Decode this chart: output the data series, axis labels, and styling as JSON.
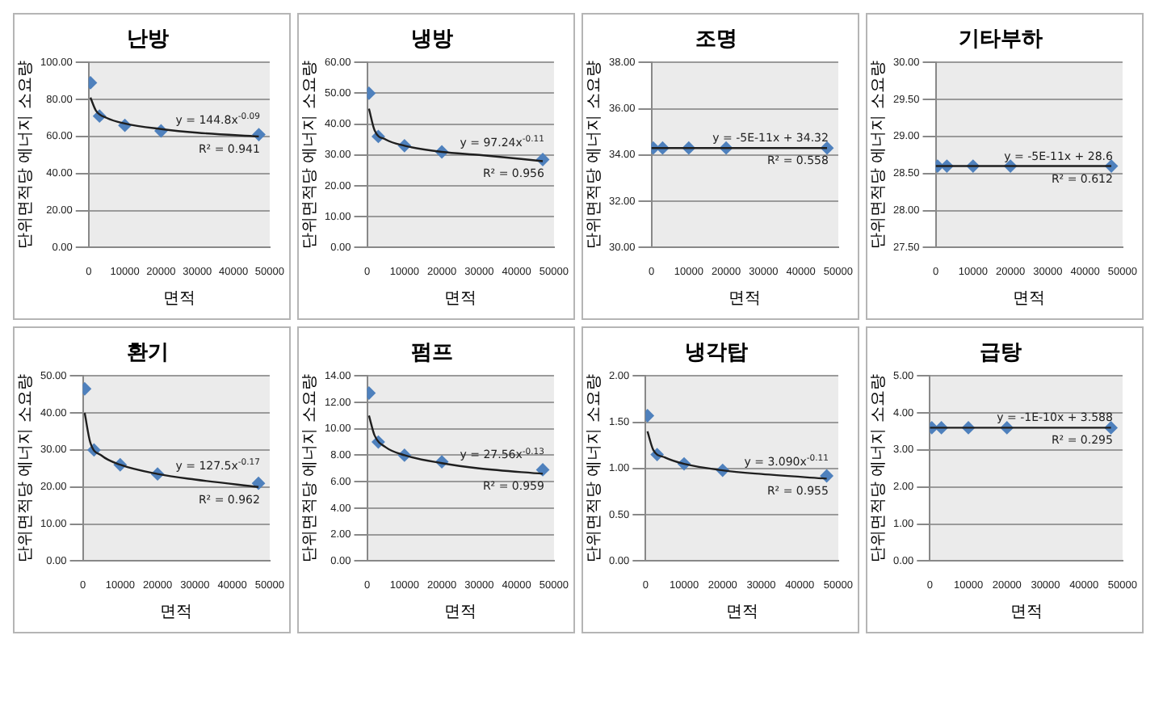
{
  "chart_data": [
    {
      "type": "scatter",
      "title": "난방",
      "xlabel": "면적",
      "ylabel": "단위면적당 에너지 소요량",
      "xlim": [
        0,
        50000
      ],
      "xticks": [
        0,
        10000,
        20000,
        30000,
        40000,
        50000
      ],
      "ylim": [
        0,
        100
      ],
      "yticks": [
        {
          "value": 0,
          "label": "0.00"
        },
        {
          "value": 20,
          "label": "20.00"
        },
        {
          "value": 40,
          "label": "40.00"
        },
        {
          "value": 60,
          "label": "60.00"
        },
        {
          "value": 80,
          "label": "80.00"
        },
        {
          "value": 100,
          "label": "100.00"
        }
      ],
      "grid": "y",
      "annotations": [
        "y = 144.8x$^{-0.09}$",
        "R² = 0.941"
      ],
      "series": [
        {
          "type": "scatter",
          "marker": "diamond",
          "color": "#4f81bd",
          "x": [
            500,
            3000,
            10000,
            20000,
            47000
          ],
          "values": [
            89,
            71,
            66,
            63,
            61
          ]
        },
        {
          "type": "line",
          "marker": "none",
          "color": "#1f1f1f",
          "x": [
            500,
            2000,
            5000,
            10000,
            20000,
            30000,
            47000
          ],
          "values": [
            81,
            74,
            70,
            67,
            64,
            62,
            60
          ]
        }
      ]
    },
    {
      "type": "scatter",
      "title": "냉방",
      "xlabel": "면적",
      "ylabel": "단위면적당 에너지 소요량",
      "xlim": [
        0,
        50000
      ],
      "xticks": [
        0,
        10000,
        20000,
        30000,
        40000,
        50000
      ],
      "ylim": [
        0,
        60
      ],
      "yticks": [
        {
          "value": 0,
          "label": "0.00"
        },
        {
          "value": 10,
          "label": "10.00"
        },
        {
          "value": 20,
          "label": "20.00"
        },
        {
          "value": 30,
          "label": "30.00"
        },
        {
          "value": 40,
          "label": "40.00"
        },
        {
          "value": 50,
          "label": "50.00"
        },
        {
          "value": 60,
          "label": "60.00"
        }
      ],
      "grid": "y",
      "annotations": [
        "y = 97.24x$^{-0.11}$",
        "R² = 0.956"
      ],
      "series": [
        {
          "type": "scatter",
          "marker": "diamond",
          "color": "#4f81bd",
          "x": [
            500,
            3000,
            10000,
            20000,
            47000
          ],
          "values": [
            50,
            36,
            33,
            31,
            28.5
          ]
        },
        {
          "type": "line",
          "marker": "none",
          "color": "#1f1f1f",
          "x": [
            500,
            2000,
            5000,
            10000,
            20000,
            30000,
            47000
          ],
          "values": [
            45,
            38,
            35,
            33,
            31,
            30,
            28
          ]
        }
      ]
    },
    {
      "type": "scatter",
      "title": "조명",
      "xlabel": "면적",
      "ylabel": "단위면적당 에너지 소요량",
      "xlim": [
        0,
        50000
      ],
      "xticks": [
        0,
        10000,
        20000,
        30000,
        40000,
        50000
      ],
      "ylim": [
        30,
        38
      ],
      "yticks": [
        {
          "value": 30,
          "label": "30.00"
        },
        {
          "value": 32,
          "label": "32.00"
        },
        {
          "value": 34,
          "label": "34.00"
        },
        {
          "value": 36,
          "label": "36.00"
        },
        {
          "value": 38,
          "label": "38.00"
        }
      ],
      "grid": "y",
      "annotations": [
        "y = -5E-11x + 34.32",
        "R² = 0.558"
      ],
      "series": [
        {
          "type": "scatter",
          "marker": "diamond",
          "color": "#4f81bd",
          "x": [
            500,
            3000,
            10000,
            20000,
            47000
          ],
          "values": [
            34.3,
            34.3,
            34.3,
            34.3,
            34.3
          ]
        },
        {
          "type": "line",
          "marker": "none",
          "color": "#1f1f1f",
          "x": [
            0,
            47000
          ],
          "values": [
            34.3,
            34.3
          ]
        }
      ]
    },
    {
      "type": "scatter",
      "title": "기타부하",
      "xlabel": "면적",
      "ylabel": "단위면적당 에너지 소요량",
      "xlim": [
        0,
        50000
      ],
      "xticks": [
        0,
        10000,
        20000,
        30000,
        40000,
        50000
      ],
      "ylim": [
        27.5,
        30
      ],
      "yticks": [
        {
          "value": 27.5,
          "label": "27.50"
        },
        {
          "value": 28,
          "label": "28.00"
        },
        {
          "value": 28.5,
          "label": "28.50"
        },
        {
          "value": 29,
          "label": "29.00"
        },
        {
          "value": 29.5,
          "label": "29.50"
        },
        {
          "value": 30,
          "label": "30.00"
        }
      ],
      "grid": "y",
      "annotations": [
        "y = -5E-11x + 28.6",
        "R² = 0.612"
      ],
      "series": [
        {
          "type": "scatter",
          "marker": "diamond",
          "color": "#4f81bd",
          "x": [
            500,
            3000,
            10000,
            20000,
            47000
          ],
          "values": [
            28.6,
            28.6,
            28.6,
            28.6,
            28.6
          ]
        },
        {
          "type": "line",
          "marker": "none",
          "color": "#1f1f1f",
          "x": [
            0,
            47000
          ],
          "values": [
            28.6,
            28.6
          ]
        }
      ]
    },
    {
      "type": "scatter",
      "title": "환기",
      "xlabel": "면적",
      "ylabel": "단위면적당 에너지 소요량",
      "xlim": [
        0,
        50000
      ],
      "xticks": [
        0,
        10000,
        20000,
        30000,
        40000,
        50000
      ],
      "ylim": [
        0,
        50
      ],
      "yticks": [
        {
          "value": 0,
          "label": "0.00"
        },
        {
          "value": 10,
          "label": "10.00"
        },
        {
          "value": 20,
          "label": "20.00"
        },
        {
          "value": 30,
          "label": "30.00"
        },
        {
          "value": 40,
          "label": "40.00"
        },
        {
          "value": 50,
          "label": "50.00"
        }
      ],
      "grid": "y",
      "annotations": [
        "y = 127.5x$^{-0.17}$",
        "R² = 0.962"
      ],
      "series": [
        {
          "type": "scatter",
          "marker": "diamond",
          "color": "#4f81bd",
          "x": [
            500,
            3000,
            10000,
            20000,
            47000
          ],
          "values": [
            46.5,
            30,
            26,
            23.5,
            21
          ]
        },
        {
          "type": "line",
          "marker": "none",
          "color": "#1f1f1f",
          "x": [
            500,
            2000,
            5000,
            10000,
            20000,
            30000,
            47000
          ],
          "values": [
            40,
            32,
            28.5,
            26,
            23.5,
            22,
            20
          ]
        }
      ]
    },
    {
      "type": "scatter",
      "title": "펌프",
      "xlabel": "면적",
      "ylabel": "단위면적당 에너지 소요량",
      "xlim": [
        0,
        50000
      ],
      "xticks": [
        0,
        10000,
        20000,
        30000,
        40000,
        50000
      ],
      "ylim": [
        0,
        14
      ],
      "yticks": [
        {
          "value": 0,
          "label": "0.00"
        },
        {
          "value": 2,
          "label": "2.00"
        },
        {
          "value": 4,
          "label": "4.00"
        },
        {
          "value": 6,
          "label": "6.00"
        },
        {
          "value": 8,
          "label": "8.00"
        },
        {
          "value": 10,
          "label": "10.00"
        },
        {
          "value": 12,
          "label": "12.00"
        },
        {
          "value": 14,
          "label": "14.00"
        }
      ],
      "grid": "y",
      "annotations": [
        "y = 27.56x$^{-0.13}$",
        "R² = 0.959"
      ],
      "series": [
        {
          "type": "scatter",
          "marker": "diamond",
          "color": "#4f81bd",
          "x": [
            500,
            3000,
            10000,
            20000,
            47000
          ],
          "values": [
            12.7,
            9,
            8,
            7.5,
            6.9
          ]
        },
        {
          "type": "line",
          "marker": "none",
          "color": "#1f1f1f",
          "x": [
            500,
            2000,
            5000,
            10000,
            20000,
            30000,
            47000
          ],
          "values": [
            11,
            9.5,
            8.6,
            8,
            7.4,
            7,
            6.6
          ]
        }
      ]
    },
    {
      "type": "scatter",
      "title": "냉각탑",
      "xlabel": "면적",
      "ylabel": "단위면적당 에너지 소요량",
      "xlim": [
        0,
        50000
      ],
      "xticks": [
        0,
        10000,
        20000,
        30000,
        40000,
        50000
      ],
      "ylim": [
        0,
        2
      ],
      "yticks": [
        {
          "value": 0,
          "label": "0.00"
        },
        {
          "value": 0.5,
          "label": "0.50"
        },
        {
          "value": 1,
          "label": "1.00"
        },
        {
          "value": 1.5,
          "label": "1.50"
        },
        {
          "value": 2,
          "label": "2.00"
        }
      ],
      "grid": "y",
      "annotations": [
        "y = 3.090x$^{-0.11}$",
        "R² = 0.955"
      ],
      "series": [
        {
          "type": "scatter",
          "marker": "diamond",
          "color": "#4f81bd",
          "x": [
            500,
            3000,
            10000,
            20000,
            47000
          ],
          "values": [
            1.57,
            1.15,
            1.05,
            0.98,
            0.92
          ]
        },
        {
          "type": "line",
          "marker": "none",
          "color": "#1f1f1f",
          "x": [
            500,
            2000,
            5000,
            10000,
            20000,
            30000,
            47000
          ],
          "values": [
            1.4,
            1.2,
            1.12,
            1.05,
            0.98,
            0.94,
            0.89
          ]
        }
      ]
    },
    {
      "type": "scatter",
      "title": "급탕",
      "xlabel": "면적",
      "ylabel": "단위면적당 에너지 소요량",
      "xlim": [
        0,
        50000
      ],
      "xticks": [
        0,
        10000,
        20000,
        30000,
        40000,
        50000
      ],
      "ylim": [
        0,
        5
      ],
      "yticks": [
        {
          "value": 0,
          "label": "0.00"
        },
        {
          "value": 1,
          "label": "1.00"
        },
        {
          "value": 2,
          "label": "2.00"
        },
        {
          "value": 3,
          "label": "3.00"
        },
        {
          "value": 4,
          "label": "4.00"
        },
        {
          "value": 5,
          "label": "5.00"
        }
      ],
      "grid": "y",
      "annotations": [
        "y = -1E-10x + 3.588",
        "R² = 0.295"
      ],
      "series": [
        {
          "type": "scatter",
          "marker": "diamond",
          "color": "#4f81bd",
          "x": [
            500,
            3000,
            10000,
            20000,
            47000
          ],
          "values": [
            3.6,
            3.6,
            3.6,
            3.6,
            3.6
          ]
        },
        {
          "type": "line",
          "marker": "none",
          "color": "#1f1f1f",
          "x": [
            0,
            47000
          ],
          "values": [
            3.6,
            3.6
          ]
        }
      ]
    }
  ]
}
